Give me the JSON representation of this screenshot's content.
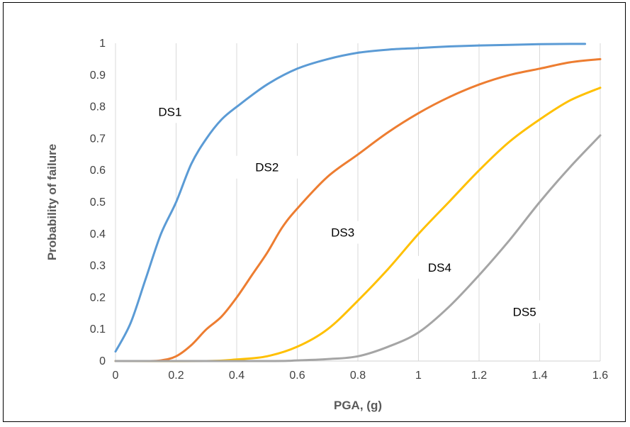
{
  "chart_data": {
    "type": "line",
    "xlabel": "PGA, (g)",
    "ylabel": "Probability of failure",
    "xlim": [
      0,
      1.6
    ],
    "ylim": [
      0,
      1
    ],
    "xticks": [
      "0",
      "0.2",
      "0.4",
      "0.6",
      "0.8",
      "1",
      "1.2",
      "1.4",
      "1.6"
    ],
    "yticks": [
      "0",
      "0.1",
      "0.2",
      "0.3",
      "0.4",
      "0.5",
      "0.6",
      "0.7",
      "0.8",
      "0.9",
      "1"
    ],
    "grid": "vertical",
    "series": [
      {
        "name": "DS1",
        "color": "#5B9BD5",
        "x": [
          0,
          0.05,
          0.1,
          0.15,
          0.2,
          0.25,
          0.3,
          0.35,
          0.4,
          0.5,
          0.6,
          0.7,
          0.8,
          0.9,
          1.0,
          1.1,
          1.2,
          1.3,
          1.4,
          1.5,
          1.55
        ],
        "y": [
          0.03,
          0.12,
          0.26,
          0.4,
          0.5,
          0.62,
          0.7,
          0.76,
          0.8,
          0.87,
          0.92,
          0.95,
          0.97,
          0.98,
          0.985,
          0.99,
          0.993,
          0.995,
          0.997,
          0.998,
          0.998
        ]
      },
      {
        "name": "DS2",
        "color": "#ED7D31",
        "x": [
          0,
          0.1,
          0.15,
          0.2,
          0.25,
          0.3,
          0.35,
          0.4,
          0.45,
          0.5,
          0.55,
          0.6,
          0.7,
          0.8,
          0.9,
          1.0,
          1.1,
          1.2,
          1.3,
          1.4,
          1.5,
          1.6
        ],
        "y": [
          0,
          0,
          0.002,
          0.015,
          0.05,
          0.1,
          0.14,
          0.2,
          0.27,
          0.34,
          0.42,
          0.48,
          0.58,
          0.65,
          0.72,
          0.78,
          0.83,
          0.87,
          0.9,
          0.92,
          0.94,
          0.95
        ]
      },
      {
        "name": "DS3",
        "color": "#FFC000",
        "x": [
          0,
          0.3,
          0.4,
          0.5,
          0.6,
          0.7,
          0.8,
          0.9,
          1.0,
          1.1,
          1.2,
          1.3,
          1.4,
          1.5,
          1.6
        ],
        "y": [
          0,
          0,
          0.005,
          0.015,
          0.045,
          0.1,
          0.19,
          0.29,
          0.4,
          0.5,
          0.6,
          0.69,
          0.76,
          0.82,
          0.86
        ]
      },
      {
        "name": "DS4",
        "color": "#A5A5A5",
        "x": [
          0,
          0.5,
          0.6,
          0.7,
          0.8,
          0.9,
          1.0,
          1.1,
          1.2,
          1.3,
          1.4,
          1.5,
          1.6
        ],
        "y": [
          0,
          0,
          0.002,
          0.006,
          0.015,
          0.045,
          0.09,
          0.17,
          0.27,
          0.38,
          0.5,
          0.61,
          0.71
        ]
      }
    ],
    "annotations": [
      {
        "text": "DS1",
        "x": 0.18,
        "y": 0.785
      },
      {
        "text": "DS2",
        "x": 0.5,
        "y": 0.61
      },
      {
        "text": "DS3",
        "x": 0.75,
        "y": 0.405
      },
      {
        "text": "DS4",
        "x": 1.07,
        "y": 0.295
      },
      {
        "text": "DS5",
        "x": 1.35,
        "y": 0.155
      }
    ]
  }
}
